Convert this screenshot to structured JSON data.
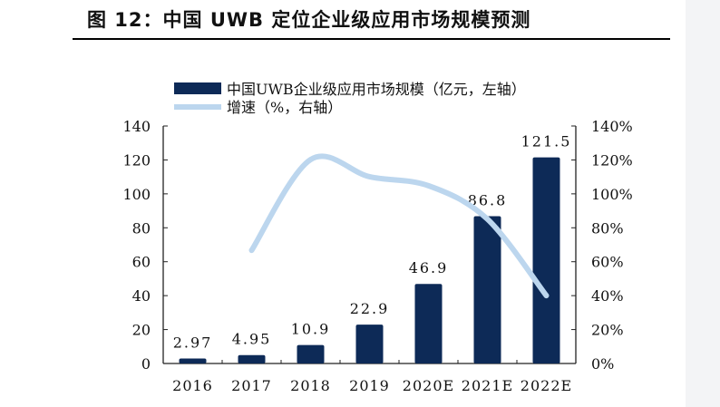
{
  "title": "图 12：中国 UWB 定位企业级应用市场规模预测",
  "chart_data": {
    "type": "bar",
    "categories": [
      "2016",
      "2017",
      "2018",
      "2019",
      "2020E",
      "2021E",
      "2022E"
    ],
    "series": [
      {
        "name": "中国UWB企业级应用市场规模（亿元，左轴）",
        "type": "bar",
        "axis": "left",
        "color": "#0d2a57",
        "values": [
          2.97,
          4.95,
          10.9,
          22.9,
          46.9,
          86.8,
          121.5
        ],
        "labels": [
          "2.97",
          "4.95",
          "10.9",
          "22.9",
          "46.9",
          "86.8",
          "121.5"
        ]
      },
      {
        "name": "增速（%，右轴）",
        "type": "line",
        "axis": "right",
        "color": "#bcd6ee",
        "values": [
          null,
          66.7,
          120.2,
          110.1,
          104.8,
          85.1,
          40.0
        ]
      }
    ],
    "ylim_left": [
      0,
      140
    ],
    "left_ticks": [
      "0",
      "20",
      "40",
      "60",
      "80",
      "100",
      "120",
      "140"
    ],
    "ylim_right": [
      0,
      140
    ],
    "right_ticks": [
      "0%",
      "20%",
      "40%",
      "60%",
      "80%",
      "100%",
      "120%",
      "140%"
    ],
    "legend": "top",
    "grid": false
  }
}
